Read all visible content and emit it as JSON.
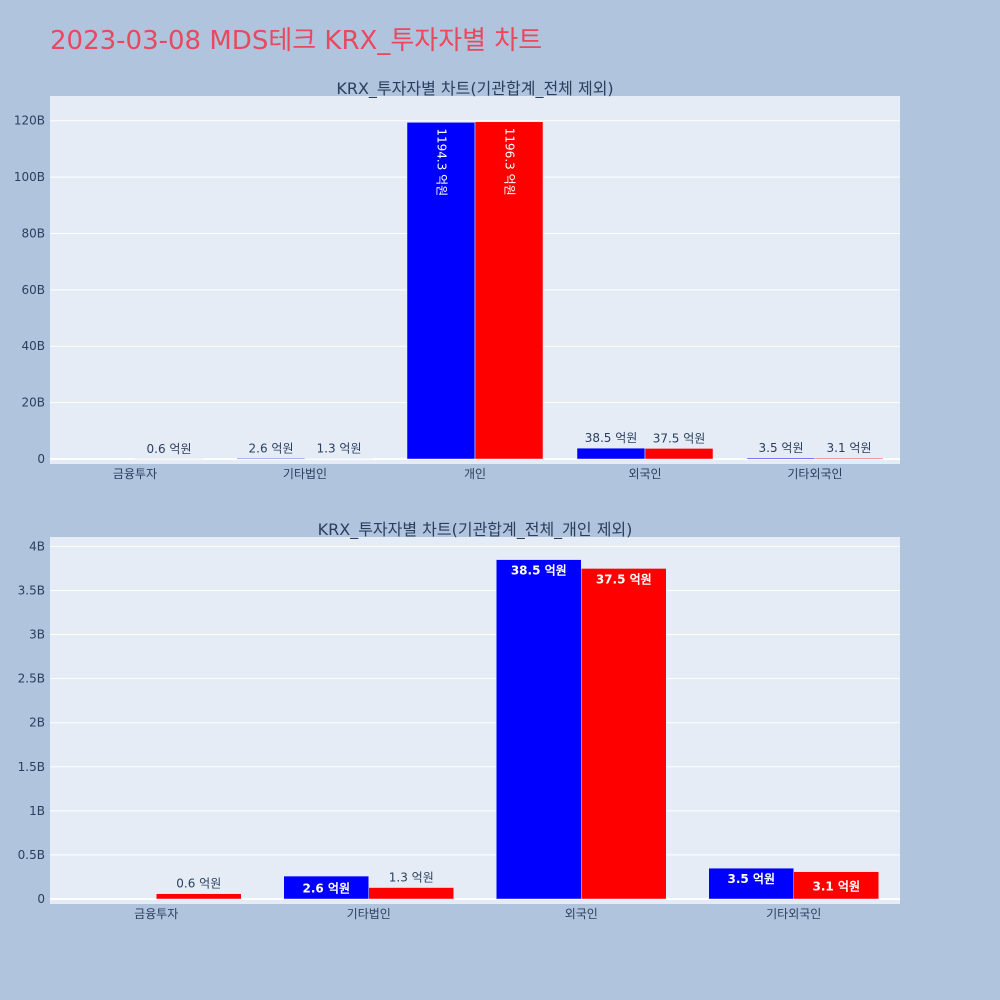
{
  "page": {
    "title": "2023-03-08 MDS테크 KRX_투자자별 차트",
    "title_color": "#e8495f",
    "background": "#b0c4de",
    "plot_background": "#e5ecf6"
  },
  "colors": {
    "series_1": "#0000ff",
    "series_2": "#ff0000"
  },
  "chart_data": [
    {
      "type": "bar",
      "title": "KRX_투자자별 차트(기관합계_전체 제외)",
      "categories": [
        "금융투자",
        "기타법인",
        "개인",
        "외국인",
        "기타외국인"
      ],
      "ylim": [
        0,
        127
      ],
      "yticks": [
        0,
        20,
        40,
        60,
        80,
        100,
        120
      ],
      "ytick_labels": [
        "0",
        "20B",
        "40B",
        "60B",
        "80B",
        "100B",
        "120B"
      ],
      "grid": true,
      "series": [
        {
          "color": "#0000ff",
          "values": [
            0,
            0.26,
            119.43,
            3.85,
            0.35
          ],
          "labels": [
            "",
            "2.6 억원",
            "1194.3 억원",
            "38.5 억원",
            "3.5 억원"
          ]
        },
        {
          "color": "#ff0000",
          "values": [
            0.06,
            0.13,
            119.63,
            3.75,
            0.31
          ],
          "labels": [
            "0.6 억원",
            "1.3 억원",
            "1196.3 억원",
            "37.5 억원",
            "3.1 억원"
          ]
        }
      ]
    },
    {
      "type": "bar",
      "title": "KRX_투자자별 차트(기관합계_전체_개인 제외)",
      "categories": [
        "금융투자",
        "기타법인",
        "외국인",
        "기타외국인"
      ],
      "ylim": [
        0,
        4.05
      ],
      "yticks": [
        0,
        0.5,
        1,
        1.5,
        2,
        2.5,
        3,
        3.5,
        4
      ],
      "ytick_labels": [
        "0",
        "0.5B",
        "1B",
        "1.5B",
        "2B",
        "2.5B",
        "3B",
        "3.5B",
        "4B"
      ],
      "grid": true,
      "series": [
        {
          "color": "#0000ff",
          "values": [
            0,
            0.26,
            3.85,
            0.35
          ],
          "labels": [
            "",
            "2.6 억원",
            "38.5 억원",
            "3.5 억원"
          ]
        },
        {
          "color": "#ff0000",
          "values": [
            0.06,
            0.13,
            3.75,
            0.31
          ],
          "labels": [
            "0.6 억원",
            "1.3 억원",
            "37.5 억원",
            "3.1 억원"
          ]
        }
      ]
    }
  ]
}
